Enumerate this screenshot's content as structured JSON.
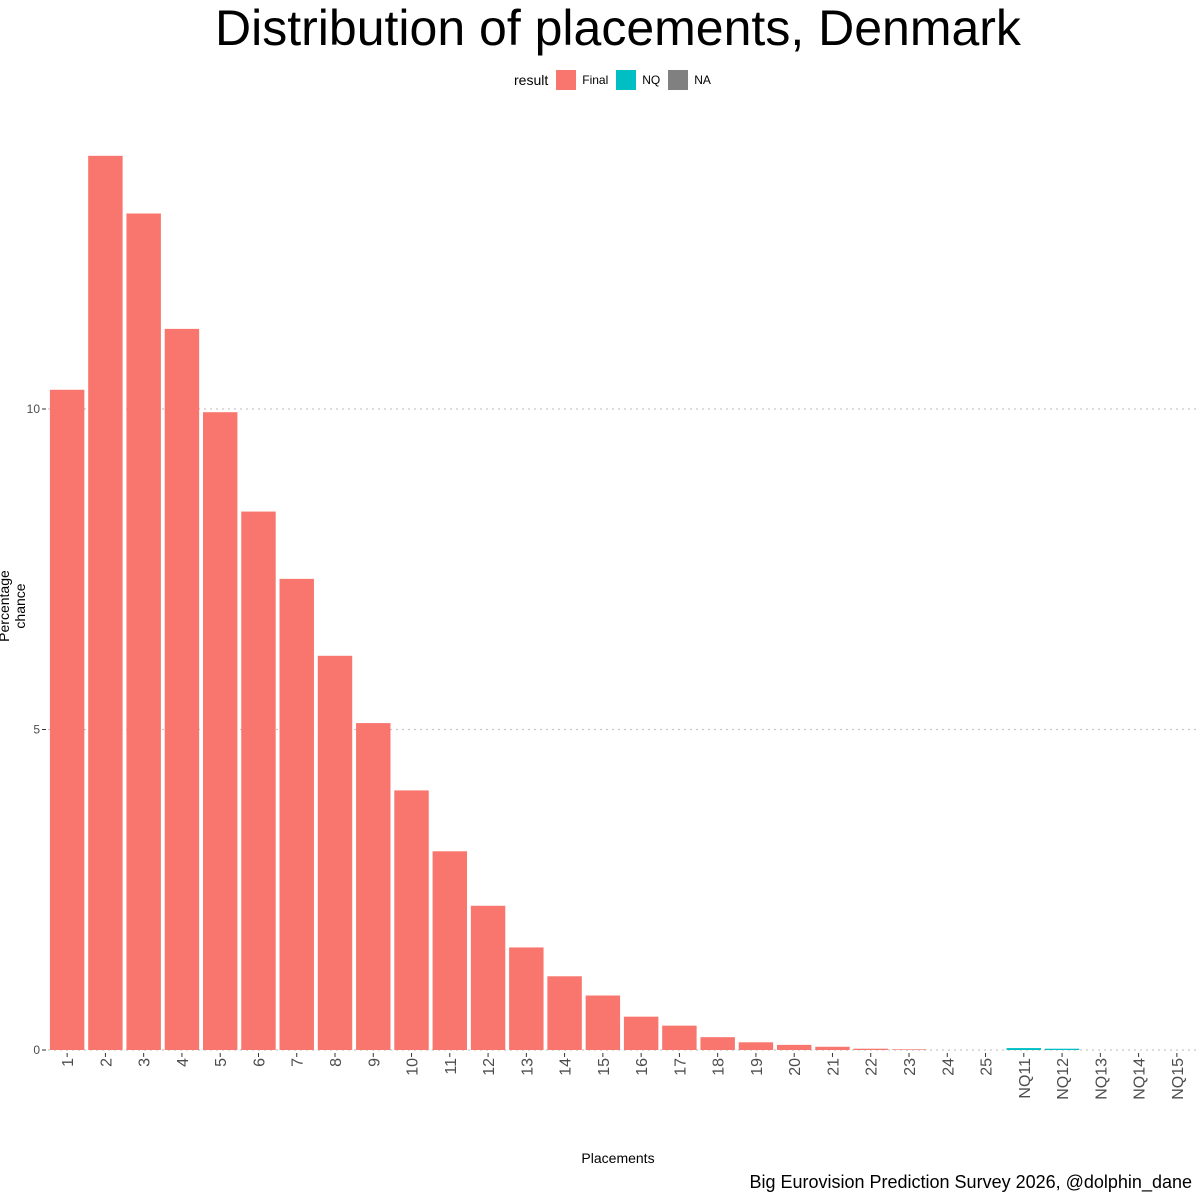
{
  "chart_data": {
    "type": "bar",
    "title": "Distribution of placements, Denmark",
    "xlabel": "Placements",
    "ylabel": "Percentage chance",
    "caption": "Big Eurovision Prediction Survey 2026, @dolphin_dane",
    "legend": {
      "title": "result",
      "placement": "top",
      "entries": [
        {
          "name": "Final",
          "color": "#F8766D"
        },
        {
          "name": "NQ",
          "color": "#00BFC4"
        },
        {
          "name": "NA",
          "color": "#808080"
        }
      ]
    },
    "categories": [
      "1",
      "2",
      "3",
      "4",
      "5",
      "6",
      "7",
      "8",
      "9",
      "10",
      "11",
      "12",
      "13",
      "14",
      "15",
      "16",
      "17",
      "18",
      "19",
      "20",
      "21",
      "22",
      "23",
      "24",
      "25",
      "NQ11",
      "NQ12",
      "NQ13",
      "NQ14",
      "NQ15"
    ],
    "values": [
      10.3,
      13.95,
      13.05,
      11.25,
      9.95,
      8.4,
      7.35,
      6.15,
      5.1,
      4.05,
      3.1,
      2.25,
      1.6,
      1.15,
      0.85,
      0.52,
      0.38,
      0.2,
      0.12,
      0.08,
      0.05,
      0.02,
      0.01,
      0,
      0,
      0.03,
      0.02,
      0,
      0,
      0
    ],
    "groups": [
      "Final",
      "Final",
      "Final",
      "Final",
      "Final",
      "Final",
      "Final",
      "Final",
      "Final",
      "Final",
      "Final",
      "Final",
      "Final",
      "Final",
      "Final",
      "Final",
      "Final",
      "Final",
      "Final",
      "Final",
      "Final",
      "Final",
      "Final",
      "Final",
      "Final",
      "NQ",
      "NQ",
      "NQ",
      "NQ",
      "NQ"
    ],
    "yticks": [
      0,
      5,
      10
    ],
    "ylim": [
      0,
      14.65
    ],
    "grid": "horizontal-major-dotted"
  }
}
